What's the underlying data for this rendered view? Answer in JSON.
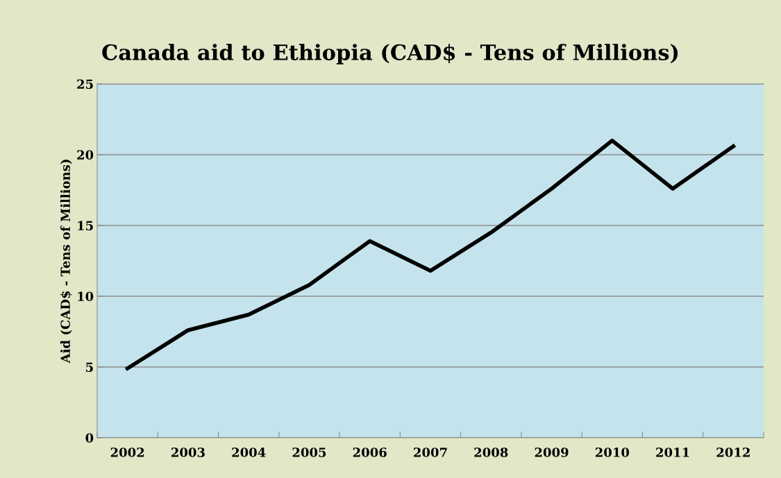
{
  "chart_data": {
    "type": "line",
    "title": "Canada aid to Ethiopia (CAD$ - Tens of Millions)",
    "ylabel": "Aid (CAD$ - Tens of Millions)",
    "categories": [
      "2002",
      "2003",
      "2004",
      "2005",
      "2006",
      "2007",
      "2008",
      "2009",
      "2010",
      "2011",
      "2012"
    ],
    "series": [
      {
        "color": "#000000",
        "values": [
          4.9,
          7.6,
          8.7,
          10.8,
          13.9,
          11.8,
          14.5,
          17.6,
          21.0,
          17.6,
          20.6
        ]
      }
    ],
    "ylim": [
      0,
      25
    ],
    "yticks": [
      0,
      5,
      10,
      15,
      20,
      25
    ],
    "grid": "y",
    "marker": "none",
    "line_style": "solid"
  }
}
